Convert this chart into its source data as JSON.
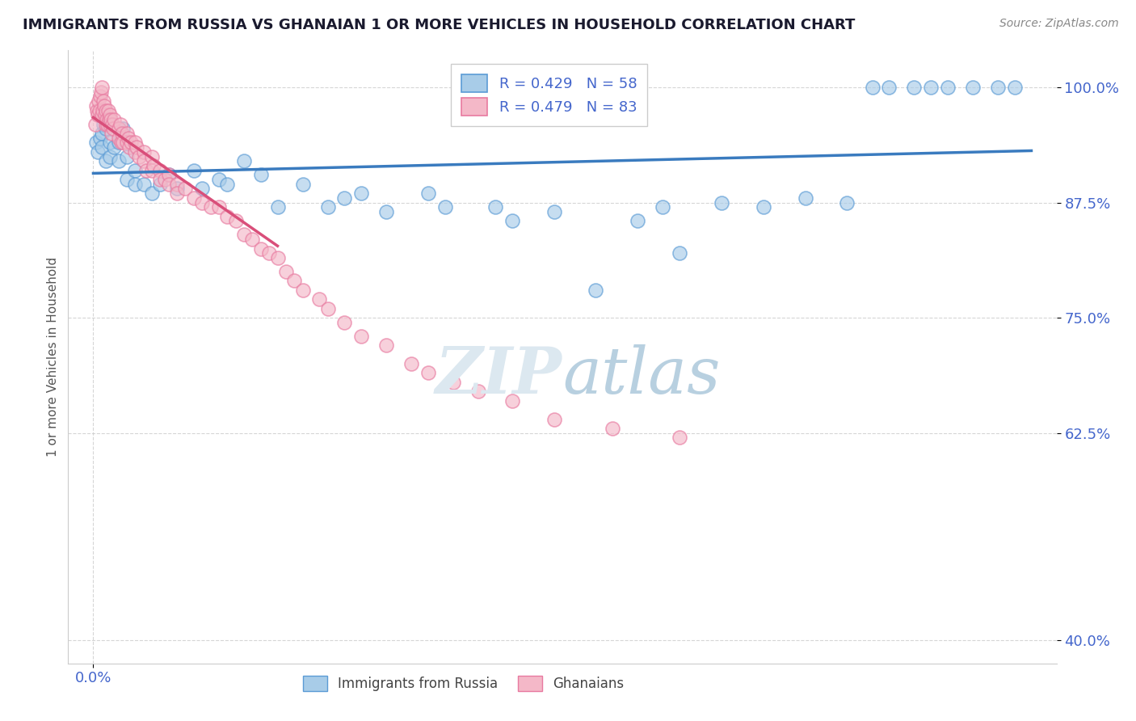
{
  "title": "IMMIGRANTS FROM RUSSIA VS GHANAIAN 1 OR MORE VEHICLES IN HOUSEHOLD CORRELATION CHART",
  "source": "Source: ZipAtlas.com",
  "ylabel": "1 or more Vehicles in Household",
  "legend_blue_label": "Immigrants from Russia",
  "legend_pink_label": "Ghanaians",
  "legend_blue_R": "R = 0.429",
  "legend_blue_N": "N = 58",
  "legend_pink_R": "R = 0.479",
  "legend_pink_N": "N = 83",
  "blue_color": "#a8cce8",
  "pink_color": "#f4b8c8",
  "blue_edge_color": "#5b9bd5",
  "pink_edge_color": "#e87aa0",
  "blue_line_color": "#3a7bbf",
  "pink_line_color": "#d94f7a",
  "tick_color": "#4466cc",
  "grid_color": "#cccccc",
  "background_color": "#ffffff",
  "xmin": -0.003,
  "xmax": 0.115,
  "ymin": 0.375,
  "ymax": 1.04,
  "yticks": [
    0.4,
    0.625,
    0.75,
    0.875,
    1.0
  ],
  "ytick_labels": [
    "40.0%",
    "62.5%",
    "75.0%",
    "87.5%",
    "100.0%"
  ],
  "blue_intercept": 0.87,
  "blue_slope": 0.85,
  "pink_intercept": 0.873,
  "pink_slope": 5.5,
  "blue_x": [
    0.0003,
    0.0005,
    0.0008,
    0.001,
    0.001,
    0.0012,
    0.0015,
    0.0015,
    0.002,
    0.002,
    0.002,
    0.0025,
    0.003,
    0.003,
    0.003,
    0.0035,
    0.004,
    0.004,
    0.005,
    0.005,
    0.006,
    0.007,
    0.008,
    0.009,
    0.01,
    0.012,
    0.013,
    0.015,
    0.016,
    0.018,
    0.02,
    0.022,
    0.025,
    0.028,
    0.03,
    0.032,
    0.035,
    0.04,
    0.042,
    0.048,
    0.05,
    0.055,
    0.06,
    0.065,
    0.068,
    0.07,
    0.075,
    0.08,
    0.085,
    0.09,
    0.093,
    0.095,
    0.098,
    0.1,
    0.102,
    0.105,
    0.108,
    0.11
  ],
  "blue_y": [
    0.94,
    0.93,
    0.945,
    0.95,
    0.935,
    0.96,
    0.92,
    0.955,
    0.925,
    0.94,
    0.965,
    0.935,
    0.955,
    0.94,
    0.92,
    0.955,
    0.925,
    0.9,
    0.91,
    0.895,
    0.895,
    0.885,
    0.895,
    0.905,
    0.89,
    0.91,
    0.89,
    0.9,
    0.895,
    0.92,
    0.905,
    0.87,
    0.895,
    0.87,
    0.88,
    0.885,
    0.865,
    0.885,
    0.87,
    0.87,
    0.855,
    0.865,
    0.78,
    0.855,
    0.87,
    0.82,
    0.875,
    0.87,
    0.88,
    0.875,
    1.0,
    1.0,
    1.0,
    1.0,
    1.0,
    1.0,
    1.0,
    1.0
  ],
  "pink_x": [
    0.0002,
    0.0003,
    0.0004,
    0.0005,
    0.0006,
    0.0007,
    0.0008,
    0.0009,
    0.001,
    0.001,
    0.0011,
    0.0012,
    0.0013,
    0.0014,
    0.0015,
    0.0015,
    0.0016,
    0.0017,
    0.0018,
    0.0019,
    0.002,
    0.002,
    0.0021,
    0.0022,
    0.0023,
    0.0024,
    0.0025,
    0.003,
    0.003,
    0.0032,
    0.0033,
    0.0034,
    0.0035,
    0.004,
    0.004,
    0.0042,
    0.0043,
    0.0045,
    0.005,
    0.005,
    0.0052,
    0.0055,
    0.006,
    0.006,
    0.0063,
    0.007,
    0.007,
    0.0072,
    0.008,
    0.008,
    0.0085,
    0.009,
    0.009,
    0.01,
    0.01,
    0.011,
    0.012,
    0.013,
    0.014,
    0.015,
    0.016,
    0.017,
    0.018,
    0.019,
    0.02,
    0.021,
    0.022,
    0.023,
    0.024,
    0.025,
    0.027,
    0.028,
    0.03,
    0.032,
    0.035,
    0.038,
    0.04,
    0.043,
    0.046,
    0.05,
    0.055,
    0.062,
    0.07
  ],
  "pink_y": [
    0.96,
    0.98,
    0.975,
    0.97,
    0.985,
    0.975,
    0.99,
    0.995,
    1.0,
    0.97,
    0.975,
    0.985,
    0.98,
    0.97,
    0.96,
    0.975,
    0.965,
    0.96,
    0.975,
    0.965,
    0.97,
    0.96,
    0.965,
    0.95,
    0.96,
    0.955,
    0.965,
    0.955,
    0.945,
    0.96,
    0.94,
    0.95,
    0.94,
    0.95,
    0.94,
    0.945,
    0.935,
    0.94,
    0.93,
    0.94,
    0.935,
    0.925,
    0.93,
    0.92,
    0.91,
    0.925,
    0.91,
    0.915,
    0.91,
    0.9,
    0.9,
    0.905,
    0.895,
    0.895,
    0.885,
    0.89,
    0.88,
    0.875,
    0.87,
    0.87,
    0.86,
    0.855,
    0.84,
    0.835,
    0.825,
    0.82,
    0.815,
    0.8,
    0.79,
    0.78,
    0.77,
    0.76,
    0.745,
    0.73,
    0.72,
    0.7,
    0.69,
    0.68,
    0.67,
    0.66,
    0.64,
    0.63,
    0.62
  ]
}
